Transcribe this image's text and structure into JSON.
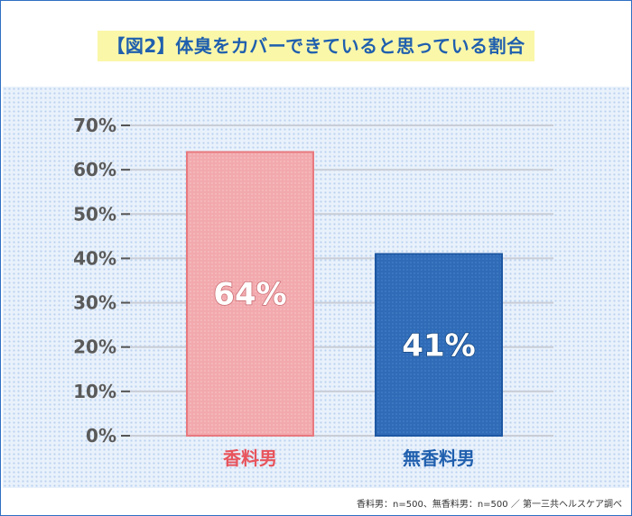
{
  "header": {
    "title": "【図2】体臭をカバーできていると思っている割合"
  },
  "footer": {
    "source": "香料男：n=500、無香料男：n=500 ／ 第一三共ヘルスケア調べ"
  },
  "colors": {
    "accent": "#1f5fae",
    "bar_fragrance": "#f2a9ad",
    "bar_fragrance_border": "#e8797f",
    "bar_no_fragrance": "#2f6bb7",
    "bar_no_fragrance_border": "#1d57a3",
    "label_fragrance": "#e8545c",
    "label_no_fragrance": "#1f5fae"
  },
  "chart_data": {
    "type": "bar",
    "title": "【図2】体臭をカバーできていると思っている割合",
    "categories": [
      "香料男",
      "無香料男"
    ],
    "values": [
      64,
      41
    ],
    "value_labels": [
      "64%",
      "41%"
    ],
    "ylim": [
      0,
      70
    ],
    "yticks": [
      0,
      10,
      20,
      30,
      40,
      50,
      60,
      70
    ],
    "ytick_labels": [
      "0%",
      "10%",
      "20%",
      "30%",
      "40%",
      "50%",
      "60%",
      "70%"
    ],
    "xlabel": "",
    "ylabel": "",
    "grid": true,
    "legend": "none"
  }
}
